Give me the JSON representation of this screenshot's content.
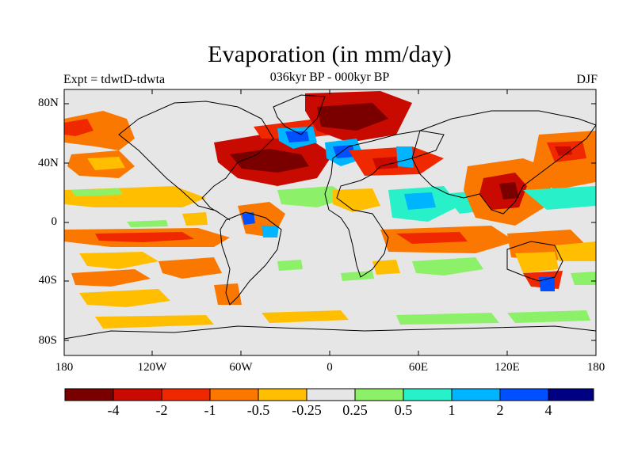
{
  "title": "Evaporation (in mm/day)",
  "subtitle": "036kyr BP - 000kyr BP",
  "experiment": "Expt = tdwtD-tdwta",
  "season": "DJF",
  "lat_labels": [
    "80N",
    "40N",
    "0",
    "40S",
    "80S"
  ],
  "lon_labels": [
    "180",
    "120W",
    "60W",
    "0",
    "60E",
    "120E",
    "180"
  ],
  "colorbar": {
    "labels": [
      "-4",
      "-2",
      "-1",
      "-0.5",
      "-0.25",
      "0.25",
      "0.5",
      "1",
      "2",
      "4"
    ],
    "colors": [
      "#7a0000",
      "#c80a00",
      "#f02800",
      "#fa7800",
      "#ffbe00",
      "#e6e6e6",
      "#8cf069",
      "#28f0c8",
      "#00b4ff",
      "#0050ff",
      "#000082"
    ]
  },
  "colors": {
    "land_outline": "#000000",
    "background": "#e6e6e6"
  }
}
